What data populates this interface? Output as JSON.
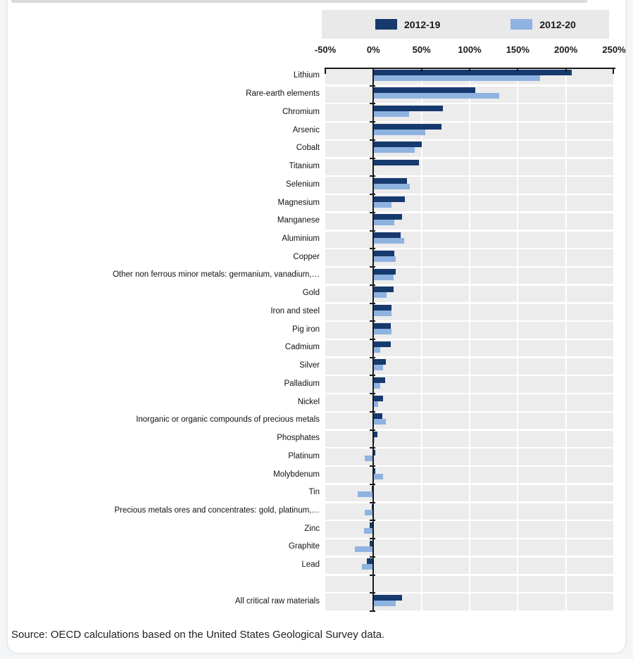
{
  "page": {
    "source_note": "Source: OECD calculations based on the United States Geological Survey data."
  },
  "legend": {
    "items": [
      {
        "label": "2012-19",
        "color": "#16396e"
      },
      {
        "label": "2012-20",
        "color": "#8fb3e0"
      }
    ]
  },
  "chart_data": {
    "type": "bar",
    "orientation": "horizontal",
    "title": "",
    "xlabel": "",
    "ylabel": "",
    "unit": "%",
    "x_range": [
      -50,
      250
    ],
    "x_ticks": [
      "-50%",
      "0%",
      "50%",
      "100%",
      "150%",
      "200%",
      "250%"
    ],
    "x_tick_values": [
      -50,
      0,
      50,
      100,
      150,
      200,
      250
    ],
    "grid": "vertical-white-on-gray-bands",
    "legend_position": "top",
    "series": [
      {
        "name": "2012-19",
        "color": "#16396e"
      },
      {
        "name": "2012-20",
        "color": "#8fb3e0"
      }
    ],
    "rows": [
      {
        "label": "Lithium",
        "v2012_19": 206,
        "v2012_20": 173
      },
      {
        "label": "Rare-earth elements",
        "v2012_19": 106,
        "v2012_20": 131
      },
      {
        "label": "Chromium",
        "v2012_19": 72,
        "v2012_20": 37
      },
      {
        "label": "Arsenic",
        "v2012_19": 71,
        "v2012_20": 54
      },
      {
        "label": "Cobalt",
        "v2012_19": 50,
        "v2012_20": 43
      },
      {
        "label": "Titanium",
        "v2012_19": 47,
        "v2012_20": 0
      },
      {
        "label": "Selenium",
        "v2012_19": 35,
        "v2012_20": 38
      },
      {
        "label": "Magnesium",
        "v2012_19": 33,
        "v2012_20": 19
      },
      {
        "label": "Manganese",
        "v2012_19": 30,
        "v2012_20": 22
      },
      {
        "label": "Aluminium",
        "v2012_19": 28,
        "v2012_20": 32
      },
      {
        "label": "Copper",
        "v2012_19": 22,
        "v2012_20": 23
      },
      {
        "label": "Other non ferrous minor metals: germanium, vanadium,…",
        "v2012_19": 23,
        "v2012_20": 21
      },
      {
        "label": "Gold",
        "v2012_19": 21,
        "v2012_20": 14
      },
      {
        "label": "Iron and steel",
        "v2012_19": 19,
        "v2012_20": 19
      },
      {
        "label": "Pig iron",
        "v2012_19": 18,
        "v2012_20": 19
      },
      {
        "label": "Cadmium",
        "v2012_19": 18,
        "v2012_20": 7
      },
      {
        "label": "Silver",
        "v2012_19": 13,
        "v2012_20": 10
      },
      {
        "label": "Palladium",
        "v2012_19": 12,
        "v2012_20": 7
      },
      {
        "label": "Nickel",
        "v2012_19": 10,
        "v2012_20": 5
      },
      {
        "label": "Inorganic or organic compounds of precious metals",
        "v2012_19": 9,
        "v2012_20": 13
      },
      {
        "label": "Phosphates",
        "v2012_19": 4,
        "v2012_20": 1
      },
      {
        "label": "Platinum",
        "v2012_19": 2,
        "v2012_20": -9
      },
      {
        "label": "Molybdenum",
        "v2012_19": 2,
        "v2012_20": 10
      },
      {
        "label": "Tin",
        "v2012_19": -2,
        "v2012_20": -16
      },
      {
        "label": "Precious metals ores and concentrates: gold, platinum,…",
        "v2012_19": -2,
        "v2012_20": -9
      },
      {
        "label": "Zinc",
        "v2012_19": -4,
        "v2012_20": -10
      },
      {
        "label": "Graphite",
        "v2012_19": -4,
        "v2012_20": -19
      },
      {
        "label": "Lead",
        "v2012_19": -7,
        "v2012_20": -12
      },
      {
        "label": "",
        "spacer": true
      },
      {
        "label": "All critical raw materials",
        "v2012_19": 30,
        "v2012_20": 23
      }
    ]
  }
}
